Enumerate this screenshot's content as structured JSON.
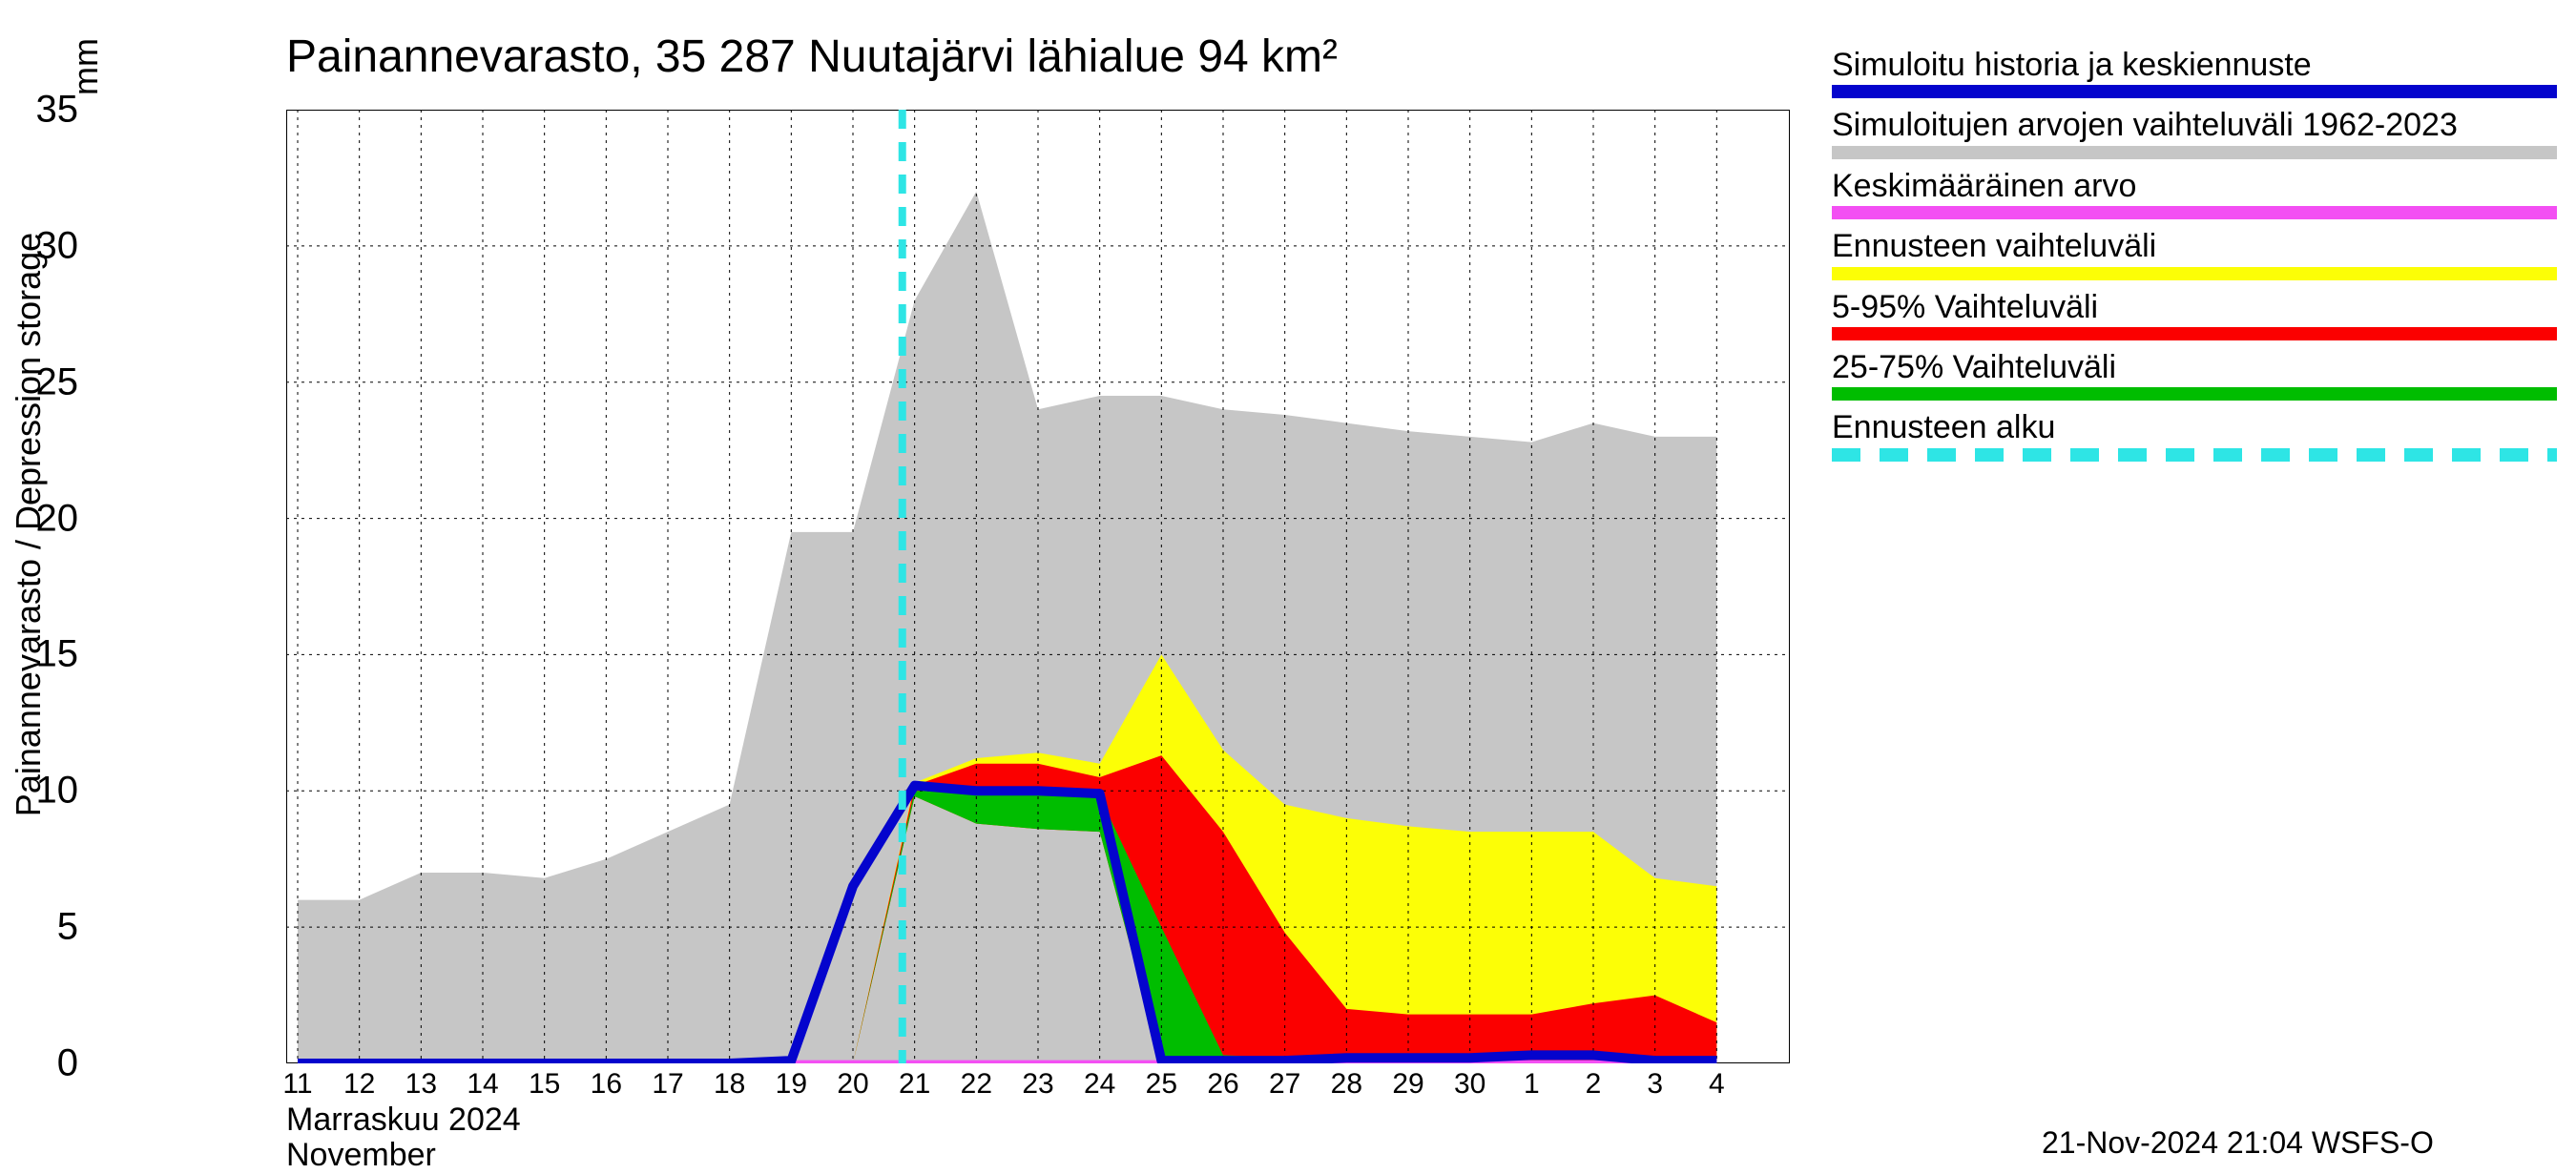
{
  "chart": {
    "type": "area-line-forecast",
    "title": "Painannevarasto, 35 287 Nuutajärvi lähialue 94 km²",
    "ylabel": "Painannevarasto / Depression storage",
    "yunit": "mm",
    "xlabel_month_fi": "Marraskuu 2024",
    "xlabel_month_en": "November",
    "timestamp": "21-Nov-2024 21:04 WSFS-O",
    "ylim": [
      0,
      35
    ],
    "ytick_step": 5,
    "yticks": [
      0,
      5,
      10,
      15,
      20,
      25,
      30,
      35
    ],
    "background_color": "#ffffff",
    "grid_color": "#000000",
    "grid_dash": "3,5",
    "plot_border_width": 2,
    "x_categories": [
      "11",
      "12",
      "13",
      "14",
      "15",
      "16",
      "17",
      "18",
      "19",
      "20",
      "21",
      "22",
      "23",
      "24",
      "25",
      "26",
      "27",
      "28",
      "29",
      "30",
      "1",
      "2",
      "3",
      "4"
    ],
    "month_boundary_index": 20,
    "forecast_start_index": 9.8,
    "series": {
      "hist_range": {
        "label_fi": "Simuloitujen arvojen vaihteluväli 1962-2023",
        "color": "#c6c6c6",
        "upper": [
          6.0,
          6.0,
          7.0,
          7.0,
          6.8,
          7.5,
          8.5,
          9.5,
          19.5,
          19.5,
          28.0,
          32.0,
          24.0,
          24.5,
          24.5,
          24.0,
          23.8,
          23.5,
          23.2,
          23.0,
          22.8,
          23.5,
          23.0,
          23.0
        ],
        "lower": [
          0,
          0,
          0,
          0,
          0,
          0,
          0,
          0,
          0,
          0,
          0,
          0,
          0,
          0,
          0,
          0,
          0,
          0,
          0,
          0,
          0,
          0,
          0,
          0
        ]
      },
      "forecast_full": {
        "label_fi": "Ennusteen vaihteluväli",
        "color": "#fcfe06",
        "upper": [
          0,
          0,
          0,
          0,
          0,
          0,
          0,
          0,
          0,
          0,
          10.3,
          11.2,
          11.4,
          11.0,
          15.0,
          11.5,
          9.5,
          9.0,
          8.7,
          8.5,
          8.5,
          8.5,
          6.8,
          6.5
        ],
        "lower": [
          0,
          0,
          0,
          0,
          0,
          0,
          0,
          0,
          0,
          0,
          9.8,
          8.8,
          8.6,
          8.5,
          0,
          0,
          0,
          0,
          0,
          0,
          0,
          0,
          0,
          0
        ]
      },
      "forecast_90": {
        "label_fi": "5-95% Vaihteluväli",
        "color": "#fb0000",
        "upper": [
          0,
          0,
          0,
          0,
          0,
          0,
          0,
          0,
          0,
          0,
          10.2,
          11.0,
          11.0,
          10.5,
          11.3,
          8.5,
          4.8,
          2.0,
          1.8,
          1.8,
          1.8,
          2.2,
          2.5,
          1.5
        ],
        "lower": [
          0,
          0,
          0,
          0,
          0,
          0,
          0,
          0,
          0,
          0,
          9.8,
          8.8,
          8.6,
          8.5,
          0,
          0,
          0,
          0,
          0,
          0,
          0,
          0,
          0,
          0
        ]
      },
      "forecast_50": {
        "label_fi": "25-75% Vaihteluväli",
        "color": "#00bd00",
        "upper": [
          0,
          0,
          0,
          0,
          0,
          0,
          0,
          0,
          0,
          0,
          10.0,
          10.0,
          10.0,
          9.8,
          5.0,
          0.3,
          0.2,
          0.1,
          0.1,
          0.1,
          0.1,
          0.1,
          0.1,
          0.1
        ],
        "lower": [
          0,
          0,
          0,
          0,
          0,
          0,
          0,
          0,
          0,
          0,
          9.8,
          8.8,
          8.6,
          8.5,
          0,
          0,
          0,
          0,
          0,
          0,
          0,
          0,
          0,
          0
        ]
      },
      "main_line": {
        "label_fi": "Simuloitu historia ja keskiennuste",
        "color": "#0404cd",
        "width": 10,
        "values": [
          0,
          0,
          0,
          0,
          0,
          0,
          0,
          0,
          0.1,
          6.5,
          10.2,
          10.0,
          10.0,
          9.9,
          0.1,
          0.1,
          0.1,
          0.2,
          0.2,
          0.2,
          0.3,
          0.3,
          0.1,
          0.1
        ]
      },
      "mean_line": {
        "label_fi": "Keskimääräinen arvo",
        "color": "#f34ff3",
        "width": 4,
        "values": [
          0.05,
          0.05,
          0.05,
          0.05,
          0.05,
          0.05,
          0.05,
          0.05,
          0.05,
          0.05,
          0.05,
          0.05,
          0.05,
          0.05,
          0.05,
          0.05,
          0.05,
          0.05,
          0.05,
          0.05,
          0.05,
          0.05,
          0.05,
          0.05
        ]
      },
      "forecast_start": {
        "label_fi": "Ennusteen alku",
        "color": "#2ee5e5",
        "dash": "20,14",
        "width": 8
      }
    },
    "legend_order": [
      "main_line",
      "hist_range",
      "mean_line",
      "forecast_full",
      "forecast_90",
      "forecast_50",
      "forecast_start"
    ],
    "title_fontsize": 48,
    "label_fontsize": 36,
    "tick_fontsize": 30
  }
}
